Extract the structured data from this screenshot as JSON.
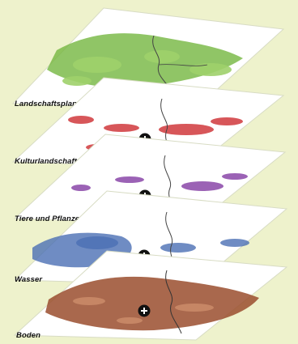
{
  "layers": [
    {
      "label": "Landschaftsplandarstellungen",
      "color": "#74b640",
      "has_plus": false
    },
    {
      "label": "Kulturlandschaften",
      "color": "#d0383c",
      "has_plus": true
    },
    {
      "label": "Tiere und Pflanzen",
      "color": "#8a46a8",
      "has_plus": true
    },
    {
      "label": "Wasser",
      "color": "#4b6fb4",
      "has_plus": true
    },
    {
      "label": "Boden",
      "color": "#9a4e2e",
      "has_plus": true
    }
  ],
  "plus_icon": "plus-circle-icon"
}
